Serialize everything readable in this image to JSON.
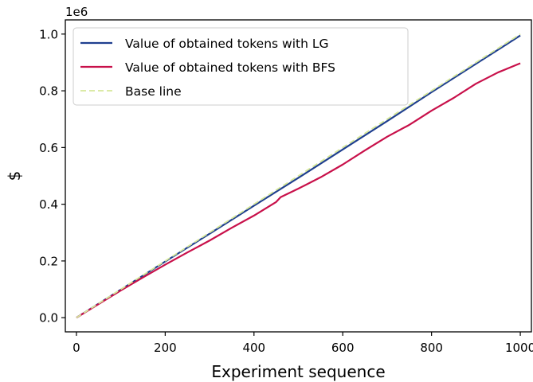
{
  "chart_data": {
    "type": "line",
    "title": "",
    "xlabel": "Experiment sequence",
    "ylabel": "$",
    "offset_text": "1e6",
    "xlim": [
      -25,
      1025
    ],
    "ylim": [
      -50000,
      1050000
    ],
    "x_ticks": [
      0,
      200,
      400,
      600,
      800,
      1000
    ],
    "x_tick_labels": [
      "0",
      "200",
      "400",
      "600",
      "800",
      "1000"
    ],
    "y_ticks": [
      0,
      200000,
      400000,
      600000,
      800000,
      1000000
    ],
    "y_tick_labels": [
      "0.0",
      "0.2",
      "0.4",
      "0.6",
      "0.8",
      "1.0"
    ],
    "grid": false,
    "legend_position": "top-left",
    "series": [
      {
        "name": "Value of obtained tokens with LG",
        "color": "#1f3f8f",
        "style": "solid",
        "x": [
          0,
          100,
          200,
          300,
          400,
          500,
          600,
          700,
          800,
          900,
          1000
        ],
        "y": [
          0,
          99000,
          198000,
          296000,
          395000,
          493000,
          593000,
          693000,
          795000,
          895000,
          995000
        ]
      },
      {
        "name": "Value of obtained tokens with BFS",
        "color": "#c8104a",
        "style": "solid",
        "x": [
          0,
          50,
          100,
          150,
          200,
          250,
          300,
          350,
          400,
          450,
          460,
          500,
          550,
          600,
          650,
          700,
          750,
          760,
          800,
          850,
          900,
          950,
          1000
        ],
        "y": [
          0,
          48000,
          96000,
          142000,
          187000,
          230000,
          272000,
          317000,
          360000,
          408000,
          425000,
          455000,
          495000,
          540000,
          590000,
          638000,
          680000,
          690000,
          730000,
          775000,
          825000,
          865000,
          897000
        ]
      },
      {
        "name": "Base line",
        "color": "#d6e89a",
        "style": "dashed",
        "x": [
          0,
          1000
        ],
        "y": [
          0,
          1000000
        ]
      }
    ]
  }
}
